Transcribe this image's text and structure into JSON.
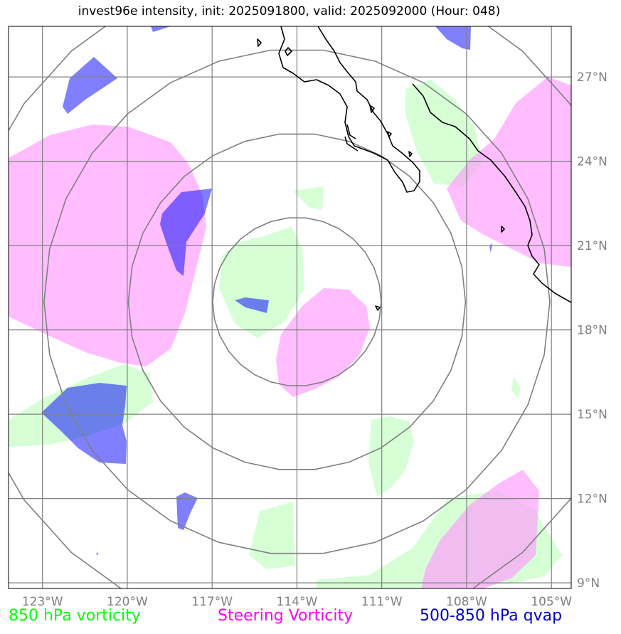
{
  "title": "invest96e intensity, init: 2025091800, valid: 2025092000 (Hour: 048)",
  "legend": {
    "vort850": "850 hPa vorticity",
    "steering": "Steering Vorticity",
    "qvap": "500-850 hPa qvap"
  },
  "colors": {
    "vort850_text": "#00ff00",
    "steering_text": "#ff00ff",
    "qvap_text": "#0000cc",
    "vort850_fill": "#ccffcc",
    "steering_fill": "#ff99ff",
    "qvap_fill": "#0000ff",
    "grid": "#808080",
    "coast": "#000000"
  },
  "lon_ticks": [
    "123°W",
    "120°W",
    "117°W",
    "114°W",
    "111°W",
    "108°W",
    "105°W"
  ],
  "lat_ticks": [
    "27°N",
    "24°N",
    "21°N",
    "18°N",
    "15°N",
    "12°N",
    "9°N"
  ],
  "map": {
    "lon_range": [
      -124.2,
      -104.3
    ],
    "lat_range": [
      8.8,
      28.8
    ],
    "lon_grid": [
      -123,
      -120,
      -117,
      -114,
      -111,
      -108,
      -105
    ],
    "lat_grid": [
      27,
      24,
      21,
      18,
      15,
      12,
      9
    ],
    "center": {
      "lon": -114.0,
      "lat": 19.0
    },
    "range_ring_radii_deg": [
      3,
      6,
      9,
      12
    ]
  }
}
